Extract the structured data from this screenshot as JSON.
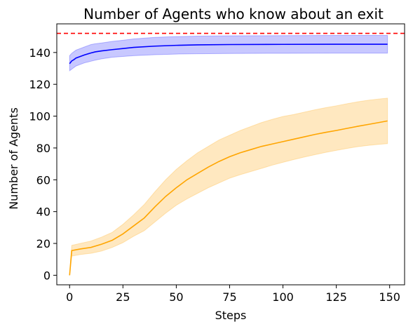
{
  "chart_data": {
    "type": "line",
    "title": "Number of Agents who know about an exit",
    "xlabel": "Steps",
    "ylabel": "Number of Agents",
    "xlim": [
      -6,
      157
    ],
    "ylim": [
      -6,
      158
    ],
    "xticks": [
      0,
      25,
      50,
      75,
      100,
      125,
      150
    ],
    "yticks": [
      0,
      20,
      40,
      60,
      80,
      100,
      120,
      140
    ],
    "grid": false,
    "reference_line": {
      "y": 152,
      "color": "#ff0000",
      "style": "dashed"
    },
    "series": [
      {
        "color": "#0000ff",
        "band_color": "#c8c8ff",
        "x": [
          0,
          1,
          2,
          3,
          5,
          7,
          10,
          12,
          15,
          20,
          25,
          30,
          40,
          50,
          60,
          75,
          100,
          125,
          149
        ],
        "y": [
          133,
          134.7,
          135.5,
          136.5,
          137.5,
          138.5,
          139.7,
          140.4,
          141,
          141.8,
          142.5,
          143.2,
          144,
          144.5,
          144.8,
          145,
          145.1,
          145.2,
          145.2
        ],
        "upper": [
          138,
          139.5,
          140.5,
          141.5,
          142.5,
          143.5,
          145,
          145.5,
          146,
          147,
          147.7,
          148.5,
          149.5,
          150,
          150.3,
          150.5,
          150.6,
          150.7,
          150.7
        ],
        "lower": [
          128.5,
          129.5,
          130.5,
          131.5,
          132.5,
          133.5,
          134.5,
          135.2,
          136,
          137,
          137.5,
          138,
          138.6,
          139,
          139.2,
          139.4,
          139.5,
          139.6,
          139.6
        ]
      },
      {
        "color": "#ffa500",
        "band_color": "#ffe8c0",
        "x": [
          0,
          1,
          5,
          10,
          15,
          20,
          25,
          30,
          35,
          40,
          45,
          50,
          55,
          60,
          65,
          70,
          75,
          80,
          85,
          90,
          95,
          100,
          105,
          110,
          115,
          120,
          125,
          130,
          135,
          140,
          145,
          149
        ],
        "y": [
          0,
          15.5,
          16.5,
          17.5,
          19.5,
          22,
          26,
          31,
          36,
          43,
          49.5,
          55,
          60,
          64,
          68,
          71.5,
          74.5,
          77,
          79,
          81,
          82.5,
          84,
          85.5,
          87,
          88.5,
          89.8,
          91,
          92.3,
          93.6,
          94.8,
          96,
          97
        ],
        "upper": [
          0,
          18.8,
          20,
          21.5,
          24,
          27,
          32,
          38,
          44.5,
          52.5,
          60,
          66.5,
          72,
          77,
          81,
          85,
          88,
          91,
          93.5,
          96,
          98,
          99.8,
          101,
          102.5,
          104,
          105.3,
          106.5,
          107.8,
          109,
          110,
          110.8,
          111.3
        ],
        "lower": [
          0,
          12,
          13,
          13.8,
          15.2,
          17.5,
          20.5,
          24.5,
          28,
          33.5,
          39,
          44,
          48,
          51.5,
          55,
          58,
          61,
          63.2,
          65.2,
          67.2,
          69.2,
          71,
          72.7,
          74.3,
          75.8,
          77.2,
          78.5,
          79.7,
          80.8,
          81.6,
          82.3,
          82.7
        ]
      }
    ]
  }
}
